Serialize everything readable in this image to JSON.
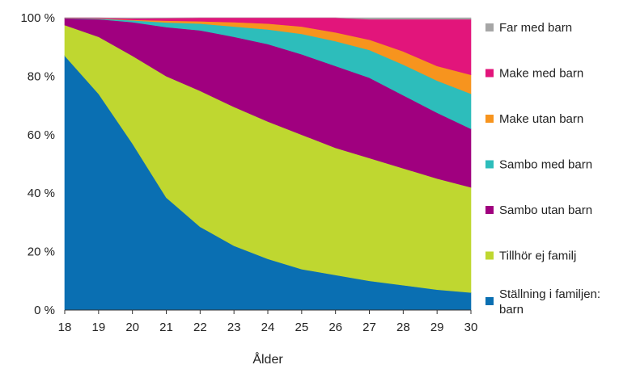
{
  "chart_data": {
    "type": "area",
    "stacked": true,
    "percent": true,
    "title": "",
    "xlabel": "Ålder",
    "ylabel": "",
    "x": [
      "18",
      "19",
      "20",
      "21",
      "22",
      "23",
      "24",
      "25",
      "26",
      "27",
      "28",
      "29",
      "30"
    ],
    "ylim": [
      0,
      100
    ],
    "yticks": [
      "0 %",
      "20 %",
      "40 %",
      "60 %",
      "80 %",
      "100 %"
    ],
    "grid": false,
    "legend_position": "right",
    "series": [
      {
        "name": "Ställning i familjen: barn",
        "color": "#0a6fb2",
        "values": [
          87,
          74,
          57,
          38.5,
          28.5,
          22,
          17.5,
          14,
          12,
          10,
          8.5,
          7,
          6
        ]
      },
      {
        "name": "Tillhör ej familj",
        "color": "#bfd730",
        "values": [
          10.5,
          19.5,
          30,
          41.5,
          46.5,
          47.5,
          47,
          46,
          43.5,
          42,
          40,
          38,
          36
        ]
      },
      {
        "name": "Sambo utan barn",
        "color": "#a0007f",
        "values": [
          2.3,
          6,
          11.5,
          16.8,
          20.7,
          24,
          26.5,
          27.5,
          28,
          27.5,
          25,
          22.5,
          20
        ]
      },
      {
        "name": "Sambo med barn",
        "color": "#2dbdbb",
        "values": [
          0.1,
          0.2,
          0.6,
          1.6,
          2.3,
          3.5,
          5,
          7,
          8.5,
          9.5,
          10.5,
          11,
          12
        ]
      },
      {
        "name": "Make utan barn",
        "color": "#f7941e",
        "values": [
          0.02,
          0.08,
          0.2,
          0.6,
          0.8,
          1.5,
          2,
          2.5,
          3,
          3.5,
          4.5,
          5,
          6.5
        ]
      },
      {
        "name": "Make med barn",
        "color": "#e2157b",
        "values": [
          0.07,
          0.2,
          0.5,
          0.9,
          1.2,
          1.5,
          2,
          3,
          5,
          7,
          11,
          16,
          19
        ]
      },
      {
        "name": "Far med barn",
        "color": "#a6a6a6",
        "values": [
          0.01,
          0.02,
          0.2,
          0.1,
          0,
          0,
          0,
          0,
          0,
          0.5,
          0.5,
          0.5,
          0.5
        ]
      }
    ]
  }
}
